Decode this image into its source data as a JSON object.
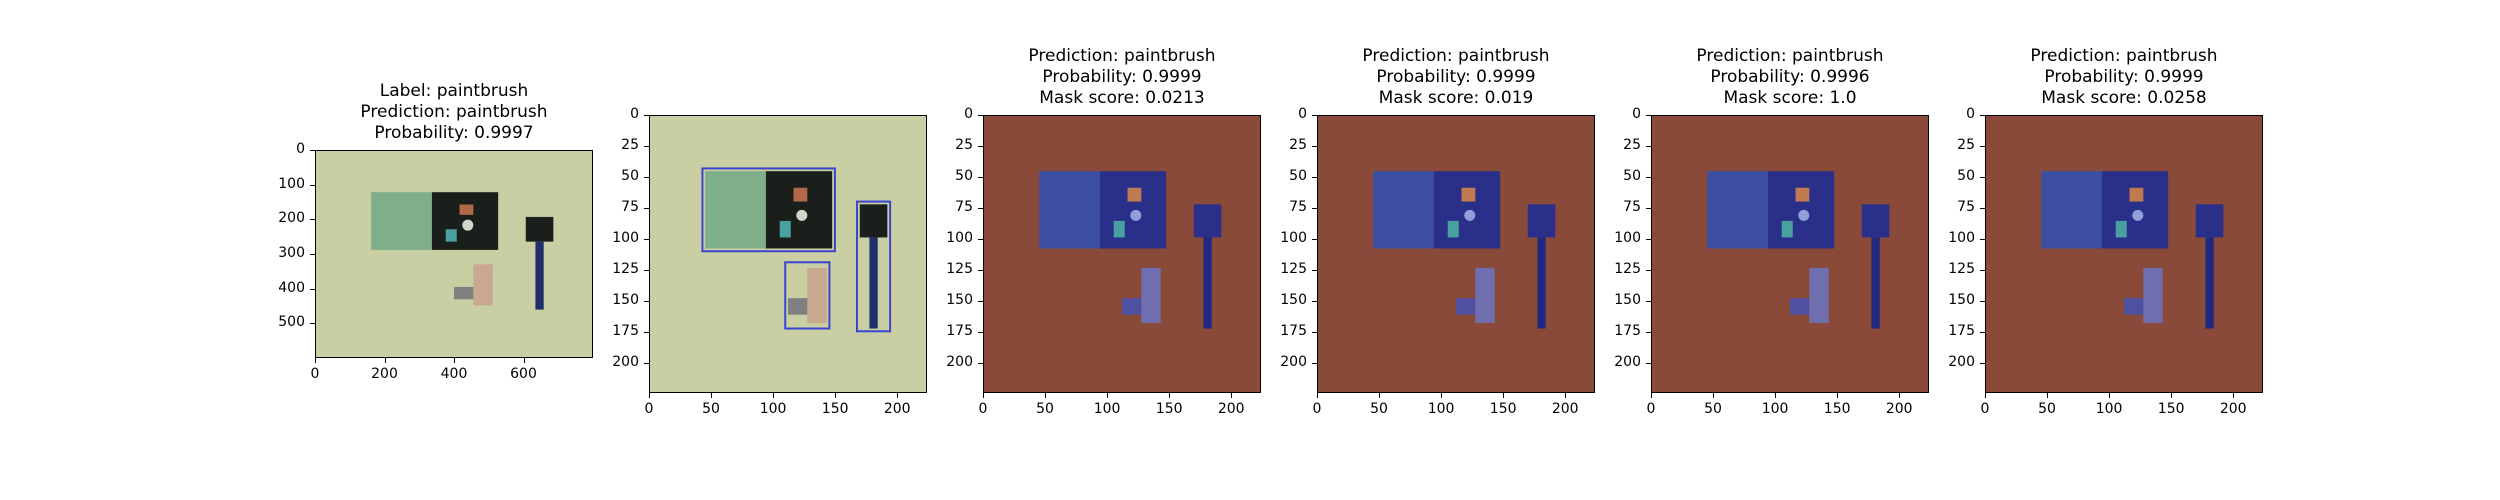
{
  "chart_data": [
    {
      "type": "image",
      "title_lines": [
        "Label: paintbrush",
        "Prediction: paintbrush",
        "Probability: 0.9997"
      ],
      "xticks": [
        "0",
        "200",
        "400",
        "600"
      ],
      "yticks": [
        "0",
        "100",
        "200",
        "300",
        "400",
        "500"
      ],
      "xlim": [
        0,
        800
      ],
      "ylim": [
        600,
        0
      ],
      "tint": "none"
    },
    {
      "type": "image",
      "title_lines": [],
      "xticks": [
        "0",
        "50",
        "100",
        "150",
        "200"
      ],
      "yticks": [
        "0",
        "25",
        "50",
        "75",
        "100",
        "125",
        "150",
        "175",
        "200"
      ],
      "xlim": [
        0,
        224
      ],
      "ylim": [
        224,
        0
      ],
      "tint": "outline"
    },
    {
      "type": "image",
      "title_lines": [
        "Prediction: paintbrush",
        "Probability: 0.9999",
        "Mask score: 0.0213"
      ],
      "xticks": [
        "0",
        "50",
        "100",
        "150",
        "200"
      ],
      "yticks": [
        "0",
        "25",
        "50",
        "75",
        "100",
        "125",
        "150",
        "175",
        "200"
      ],
      "xlim": [
        0,
        224
      ],
      "ylim": [
        224,
        0
      ],
      "tint": "mask"
    },
    {
      "type": "image",
      "title_lines": [
        "Prediction: paintbrush",
        "Probability: 0.9999",
        "Mask score: 0.019"
      ],
      "xticks": [
        "0",
        "50",
        "100",
        "150",
        "200"
      ],
      "yticks": [
        "0",
        "25",
        "50",
        "75",
        "100",
        "125",
        "150",
        "175",
        "200"
      ],
      "xlim": [
        0,
        224
      ],
      "ylim": [
        224,
        0
      ],
      "tint": "mask"
    },
    {
      "type": "image",
      "title_lines": [
        "Prediction: paintbrush",
        "Probability: 0.9996",
        "Mask score: 1.0"
      ],
      "xticks": [
        "0",
        "50",
        "100",
        "150",
        "200"
      ],
      "yticks": [
        "0",
        "25",
        "50",
        "75",
        "100",
        "125",
        "150",
        "175",
        "200"
      ],
      "xlim": [
        0,
        224
      ],
      "ylim": [
        224,
        0
      ],
      "tint": "mask"
    },
    {
      "type": "image",
      "title_lines": [
        "Prediction: paintbrush",
        "Probability: 0.9999",
        "Mask score: 0.0258"
      ],
      "xticks": [
        "0",
        "50",
        "100",
        "150",
        "200"
      ],
      "yticks": [
        "0",
        "25",
        "50",
        "75",
        "100",
        "125",
        "150",
        "175",
        "200"
      ],
      "xlim": [
        0,
        224
      ],
      "ylim": [
        224,
        0
      ],
      "tint": "mask"
    }
  ],
  "colors": {
    "background": "#c9cfa3",
    "mask_background": "#8a4a3a",
    "mask_objects": "#2a2f8a",
    "outline": "#3a44d0"
  }
}
